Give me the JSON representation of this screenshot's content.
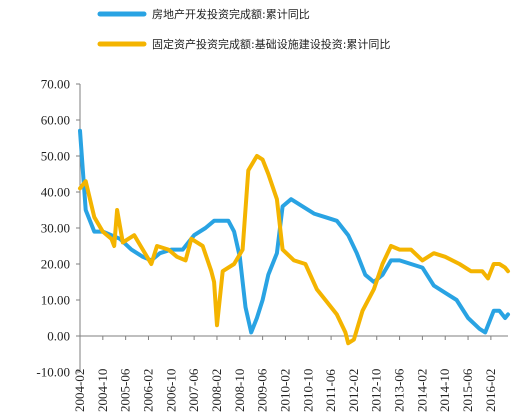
{
  "chart_data": {
    "type": "line",
    "title": "",
    "xlabel": "",
    "ylabel": "",
    "ylim": [
      -10,
      70
    ],
    "yticks": [
      -10,
      0,
      10,
      20,
      30,
      40,
      50,
      60,
      70
    ],
    "ytick_labels": [
      "-10.00",
      "0.00",
      "10.00",
      "20.00",
      "30.00",
      "40.00",
      "50.00",
      "60.00",
      "70.00"
    ],
    "xlim": [
      "2004-02",
      "2016-08"
    ],
    "xtick_labels": [
      "2004-02",
      "2004-10",
      "2005-06",
      "2006-02",
      "2006-10",
      "2007-06",
      "2008-02",
      "2008-10",
      "2009-06",
      "2010-02",
      "2010-10",
      "2011-06",
      "2012-02",
      "2012-10",
      "2013-06",
      "2014-02",
      "2014-10",
      "2015-06",
      "2016-02"
    ],
    "grid": false,
    "legend_position": "top-left",
    "series": [
      {
        "name": "房地产开发投资完成额:累计同比",
        "color": "#29a3e3",
        "points": [
          [
            "2004-02",
            57
          ],
          [
            "2004-04",
            35
          ],
          [
            "2004-07",
            29
          ],
          [
            "2004-10",
            29
          ],
          [
            "2005-01",
            28
          ],
          [
            "2005-04",
            27
          ],
          [
            "2005-08",
            24
          ],
          [
            "2005-12",
            22
          ],
          [
            "2006-03",
            21
          ],
          [
            "2006-06",
            23
          ],
          [
            "2006-10",
            24
          ],
          [
            "2007-02",
            24
          ],
          [
            "2007-06",
            28
          ],
          [
            "2007-10",
            30
          ],
          [
            "2008-01",
            32
          ],
          [
            "2008-03",
            32
          ],
          [
            "2008-06",
            32
          ],
          [
            "2008-08",
            29
          ],
          [
            "2008-10",
            22
          ],
          [
            "2008-12",
            8
          ],
          [
            "2009-02",
            1
          ],
          [
            "2009-04",
            5
          ],
          [
            "2009-06",
            10
          ],
          [
            "2009-08",
            17
          ],
          [
            "2009-11",
            23
          ],
          [
            "2010-01",
            36
          ],
          [
            "2010-04",
            38
          ],
          [
            "2010-08",
            36
          ],
          [
            "2010-12",
            34
          ],
          [
            "2011-04",
            33
          ],
          [
            "2011-08",
            32
          ],
          [
            "2011-12",
            28
          ],
          [
            "2012-03",
            23
          ],
          [
            "2012-06",
            17
          ],
          [
            "2012-09",
            15
          ],
          [
            "2012-12",
            17
          ],
          [
            "2013-03",
            21
          ],
          [
            "2013-06",
            21
          ],
          [
            "2013-10",
            20
          ],
          [
            "2014-02",
            19
          ],
          [
            "2014-06",
            14
          ],
          [
            "2014-10",
            12
          ],
          [
            "2015-02",
            10
          ],
          [
            "2015-06",
            5
          ],
          [
            "2015-10",
            2
          ],
          [
            "2015-12",
            1
          ],
          [
            "2016-03",
            7
          ],
          [
            "2016-05",
            7
          ],
          [
            "2016-07",
            5
          ],
          [
            "2016-08",
            6
          ]
        ]
      },
      {
        "name": "固定资产投资完成额:基础设施建设投资:累计同比",
        "color": "#f4b400",
        "points": [
          [
            "2004-02",
            41
          ],
          [
            "2004-04",
            43
          ],
          [
            "2004-07",
            33
          ],
          [
            "2004-10",
            29
          ],
          [
            "2005-01",
            27
          ],
          [
            "2005-02",
            25
          ],
          [
            "2005-03",
            35
          ],
          [
            "2005-05",
            26
          ],
          [
            "2005-09",
            28
          ],
          [
            "2005-12",
            24
          ],
          [
            "2006-03",
            20
          ],
          [
            "2006-05",
            25
          ],
          [
            "2006-09",
            24
          ],
          [
            "2006-12",
            22
          ],
          [
            "2007-03",
            21
          ],
          [
            "2007-05",
            27
          ],
          [
            "2007-09",
            25
          ],
          [
            "2007-12",
            18
          ],
          [
            "2008-01",
            15
          ],
          [
            "2008-02",
            3
          ],
          [
            "2008-04",
            18
          ],
          [
            "2008-08",
            20
          ],
          [
            "2008-11",
            24
          ],
          [
            "2009-01",
            46
          ],
          [
            "2009-04",
            50
          ],
          [
            "2009-06",
            49
          ],
          [
            "2009-08",
            45
          ],
          [
            "2009-11",
            38
          ],
          [
            "2010-01",
            24
          ],
          [
            "2010-05",
            21
          ],
          [
            "2010-09",
            20
          ],
          [
            "2011-01",
            13
          ],
          [
            "2011-04",
            10
          ],
          [
            "2011-08",
            6
          ],
          [
            "2011-11",
            1
          ],
          [
            "2011-12",
            -2
          ],
          [
            "2012-02",
            -1
          ],
          [
            "2012-05",
            7
          ],
          [
            "2012-09",
            13
          ],
          [
            "2012-12",
            20
          ],
          [
            "2013-03",
            25
          ],
          [
            "2013-06",
            24
          ],
          [
            "2013-10",
            24
          ],
          [
            "2014-02",
            21
          ],
          [
            "2014-06",
            23
          ],
          [
            "2014-10",
            22
          ],
          [
            "2015-03",
            20
          ],
          [
            "2015-07",
            18
          ],
          [
            "2015-11",
            18
          ],
          [
            "2016-01",
            16
          ],
          [
            "2016-03",
            20
          ],
          [
            "2016-05",
            20
          ],
          [
            "2016-07",
            19
          ],
          [
            "2016-08",
            18
          ]
        ]
      }
    ]
  }
}
